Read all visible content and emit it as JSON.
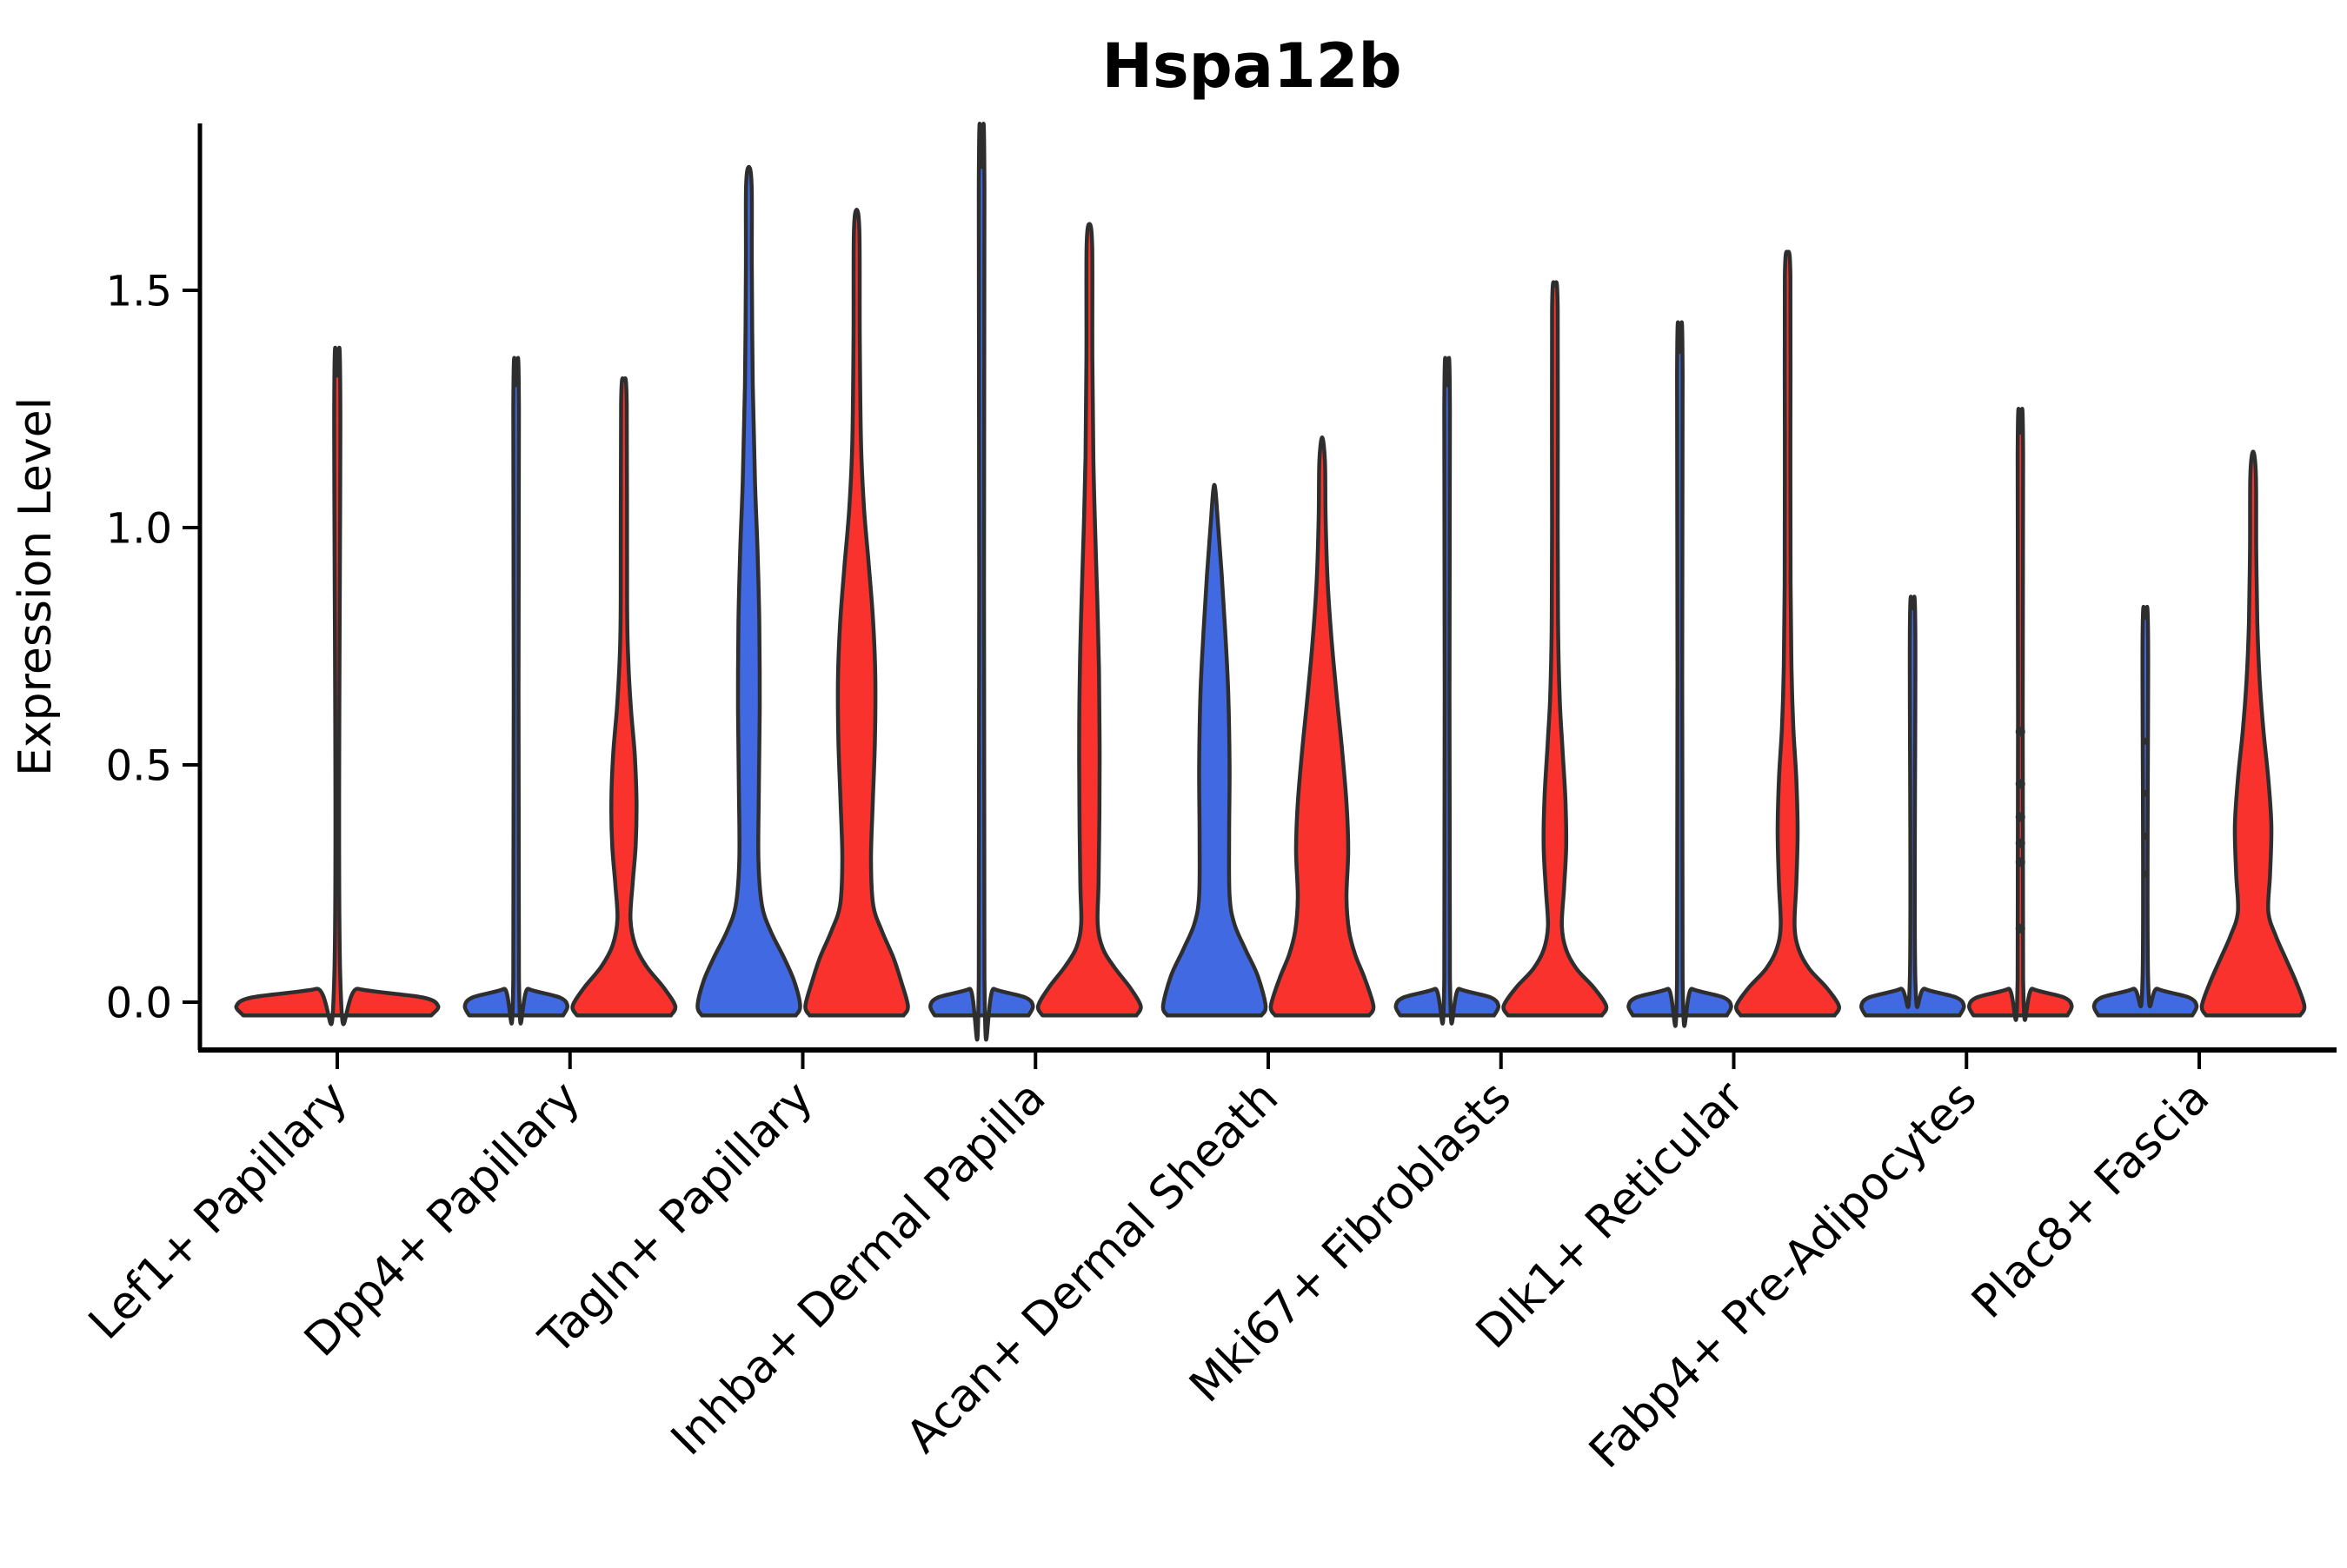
{
  "title": "Hspa12b",
  "axes": {
    "ylabel": "Expression Level",
    "ytick_labels": [
      "0.0",
      "0.5",
      "1.0",
      "1.5"
    ],
    "ytick_values": [
      0.0,
      0.5,
      1.0,
      1.5
    ]
  },
  "chart_data": {
    "type": "violin",
    "title": "Hspa12b",
    "ylabel": "Expression Level",
    "ylim": [
      -0.101,
      1.851
    ],
    "yticks": [
      0.0,
      0.5,
      1.0,
      1.5
    ],
    "grid": false,
    "legend": "none",
    "colors": {
      "blue": "#4169e1",
      "red": "#f9322d",
      "stroke": "#2e2e2e",
      "axis": "#000000"
    },
    "categories": [
      "Lef1+ Papillary",
      "Dpp4+ Papillary",
      "Tagln+ Papillary",
      "Inhba+ Dermal Papilla",
      "Acan+ Dermal Sheath",
      "Mki67+ Fibroblasts",
      "Dlk1+ Reticular",
      "Fabp4+ Pre-Adipocytes",
      "Plac8+ Fascia"
    ],
    "violins": [
      {
        "cat": 0,
        "side": "center",
        "color": "red",
        "tip": 1.32,
        "half_width": 118,
        "profile": [
          [
            -0.028,
            108
          ],
          [
            -0.008,
            116
          ],
          [
            0.01,
            98
          ],
          [
            0.028,
            24
          ],
          [
            0.05,
            3.5
          ],
          [
            1.27,
            3.5
          ],
          [
            1.32,
            0
          ]
        ],
        "dots": []
      },
      {
        "cat": 1,
        "side": "left",
        "color": "blue",
        "tip": 1.3,
        "half_width": 62,
        "profile": [
          [
            -0.028,
            54
          ],
          [
            -0.008,
            59
          ],
          [
            0.01,
            50
          ],
          [
            0.028,
            14
          ],
          [
            0.05,
            3.2
          ],
          [
            1.25,
            3.2
          ],
          [
            1.3,
            0
          ]
        ],
        "dots": []
      },
      {
        "cat": 1,
        "side": "right",
        "color": "red",
        "tip": 1.31,
        "half_width": 62,
        "profile": [
          [
            -0.028,
            54
          ],
          [
            -0.008,
            59
          ],
          [
            0.03,
            46
          ],
          [
            0.075,
            26
          ],
          [
            0.12,
            13
          ],
          [
            0.175,
            7.5
          ],
          [
            0.25,
            10
          ],
          [
            0.33,
            13.5
          ],
          [
            0.42,
            14.5
          ],
          [
            0.52,
            12.5
          ],
          [
            0.62,
            8
          ],
          [
            0.72,
            5
          ],
          [
            0.85,
            3.6
          ],
          [
            1.26,
            3.2
          ],
          [
            1.31,
            0
          ]
        ],
        "dots": []
      },
      {
        "cat": 2,
        "side": "left",
        "color": "blue",
        "tip": 1.76,
        "half_width": 62,
        "profile": [
          [
            -0.028,
            54
          ],
          [
            -0.008,
            59
          ],
          [
            0.045,
            52
          ],
          [
            0.095,
            40
          ],
          [
            0.15,
            25
          ],
          [
            0.205,
            15
          ],
          [
            0.3,
            11
          ],
          [
            0.45,
            11.5
          ],
          [
            0.62,
            12.5
          ],
          [
            0.8,
            12
          ],
          [
            0.95,
            10
          ],
          [
            1.1,
            7
          ],
          [
            1.3,
            4.5
          ],
          [
            1.55,
            3.4
          ],
          [
            1.72,
            3.2
          ],
          [
            1.76,
            0
          ]
        ],
        "dots": []
      },
      {
        "cat": 2,
        "side": "right",
        "color": "red",
        "tip": 1.67,
        "half_width": 62,
        "profile": [
          [
            -0.028,
            54
          ],
          [
            -0.008,
            59
          ],
          [
            0.045,
            51
          ],
          [
            0.095,
            42
          ],
          [
            0.15,
            29
          ],
          [
            0.205,
            19
          ],
          [
            0.3,
            16.5
          ],
          [
            0.42,
            18.5
          ],
          [
            0.55,
            21
          ],
          [
            0.68,
            21.5
          ],
          [
            0.8,
            19
          ],
          [
            0.92,
            14
          ],
          [
            1.04,
            8.5
          ],
          [
            1.18,
            5
          ],
          [
            1.4,
            3.6
          ],
          [
            1.62,
            3.2
          ],
          [
            1.67,
            0
          ]
        ],
        "dots": []
      },
      {
        "cat": 3,
        "side": "left",
        "color": "blue",
        "tip": 1.76,
        "half_width": 62,
        "profile": [
          [
            -0.028,
            54
          ],
          [
            -0.008,
            59
          ],
          [
            0.01,
            50
          ],
          [
            0.028,
            14
          ],
          [
            0.05,
            3.2
          ],
          [
            1.71,
            3.2
          ],
          [
            1.76,
            0
          ]
        ],
        "dots": []
      },
      {
        "cat": 3,
        "side": "right",
        "color": "red",
        "tip": 1.64,
        "half_width": 62,
        "profile": [
          [
            -0.028,
            54
          ],
          [
            -0.008,
            59
          ],
          [
            0.03,
            47
          ],
          [
            0.075,
            28
          ],
          [
            0.115,
            15
          ],
          [
            0.165,
            9.5
          ],
          [
            0.25,
            10.5
          ],
          [
            0.4,
            11.5
          ],
          [
            0.55,
            11.8
          ],
          [
            0.7,
            11
          ],
          [
            0.85,
            9
          ],
          [
            1.0,
            6.5
          ],
          [
            1.15,
            4.5
          ],
          [
            1.35,
            3.4
          ],
          [
            1.59,
            3.2
          ],
          [
            1.64,
            0
          ]
        ],
        "dots": []
      },
      {
        "cat": 4,
        "side": "left",
        "color": "blue",
        "tip": 1.09,
        "half_width": 62,
        "profile": [
          [
            -0.028,
            54
          ],
          [
            -0.008,
            59
          ],
          [
            0.055,
            50
          ],
          [
            0.11,
            36
          ],
          [
            0.165,
            23
          ],
          [
            0.225,
            17.5
          ],
          [
            0.35,
            17
          ],
          [
            0.5,
            17.5
          ],
          [
            0.65,
            16
          ],
          [
            0.78,
            12.5
          ],
          [
            0.9,
            8.5
          ],
          [
            1.0,
            4.5
          ],
          [
            1.09,
            0
          ]
        ],
        "dots": []
      },
      {
        "cat": 4,
        "side": "right",
        "color": "red",
        "tip": 1.19,
        "half_width": 62,
        "profile": [
          [
            -0.028,
            54
          ],
          [
            -0.008,
            59
          ],
          [
            0.05,
            49
          ],
          [
            0.1,
            38
          ],
          [
            0.15,
            31
          ],
          [
            0.22,
            28
          ],
          [
            0.32,
            30
          ],
          [
            0.42,
            28
          ],
          [
            0.53,
            23
          ],
          [
            0.64,
            17
          ],
          [
            0.76,
            11
          ],
          [
            0.88,
            6.5
          ],
          [
            1.02,
            4
          ],
          [
            1.14,
            3.2
          ],
          [
            1.19,
            0
          ]
        ],
        "dots": []
      },
      {
        "cat": 5,
        "side": "left",
        "color": "blue",
        "tip": 1.3,
        "half_width": 62,
        "profile": [
          [
            -0.028,
            54
          ],
          [
            -0.008,
            59
          ],
          [
            0.01,
            50
          ],
          [
            0.028,
            14
          ],
          [
            0.05,
            3.2
          ],
          [
            1.25,
            3.2
          ],
          [
            1.3,
            0
          ]
        ],
        "dots": []
      },
      {
        "cat": 5,
        "side": "right",
        "color": "red",
        "tip": 1.51,
        "half_width": 62,
        "profile": [
          [
            -0.028,
            54
          ],
          [
            -0.008,
            59
          ],
          [
            0.03,
            45
          ],
          [
            0.07,
            25
          ],
          [
            0.11,
            13
          ],
          [
            0.16,
            8
          ],
          [
            0.24,
            10.5
          ],
          [
            0.33,
            13
          ],
          [
            0.43,
            12
          ],
          [
            0.54,
            8.5
          ],
          [
            0.64,
            5.5
          ],
          [
            0.78,
            3.8
          ],
          [
            1.0,
            3.2
          ],
          [
            1.46,
            3.2
          ],
          [
            1.51,
            0
          ]
        ],
        "dots": []
      },
      {
        "cat": 6,
        "side": "left",
        "color": "blue",
        "tip": 1.37,
        "half_width": 62,
        "profile": [
          [
            -0.028,
            54
          ],
          [
            -0.008,
            59
          ],
          [
            0.01,
            50
          ],
          [
            0.028,
            14
          ],
          [
            0.05,
            3.2
          ],
          [
            1.32,
            3.2
          ],
          [
            1.37,
            0
          ]
        ],
        "dots": []
      },
      {
        "cat": 6,
        "side": "right",
        "color": "red",
        "tip": 1.58,
        "half_width": 62,
        "profile": [
          [
            -0.028,
            54
          ],
          [
            -0.008,
            59
          ],
          [
            0.03,
            45
          ],
          [
            0.07,
            25
          ],
          [
            0.11,
            13
          ],
          [
            0.16,
            8
          ],
          [
            0.25,
            10
          ],
          [
            0.36,
            11.5
          ],
          [
            0.47,
            10
          ],
          [
            0.58,
            6.5
          ],
          [
            0.7,
            4.5
          ],
          [
            0.88,
            3.4
          ],
          [
            1.2,
            3.2
          ],
          [
            1.53,
            3.2
          ],
          [
            1.58,
            0
          ]
        ],
        "dots": []
      },
      {
        "cat": 7,
        "side": "left",
        "color": "blue",
        "tip": 0.83,
        "half_width": 62,
        "profile": [
          [
            -0.028,
            54
          ],
          [
            -0.008,
            59
          ],
          [
            0.01,
            50
          ],
          [
            0.028,
            14
          ],
          [
            0.05,
            3.2
          ],
          [
            0.78,
            3.2
          ],
          [
            0.83,
            0
          ]
        ],
        "dots": []
      },
      {
        "cat": 7,
        "side": "right",
        "color": "red",
        "tip": 1.2,
        "half_width": 62,
        "profile": [
          [
            -0.028,
            54
          ],
          [
            -0.008,
            59
          ],
          [
            0.01,
            50
          ],
          [
            0.028,
            14
          ],
          [
            0.05,
            3.2
          ],
          [
            1.15,
            3.2
          ],
          [
            1.2,
            0
          ]
        ],
        "dots": [
          0.57,
          0.46,
          0.39,
          0.335,
          0.295,
          0.155
        ],
        "dot_radius": 5.5
      },
      {
        "cat": 8,
        "side": "left",
        "color": "blue",
        "tip": 0.81,
        "half_width": 62,
        "profile": [
          [
            -0.028,
            54
          ],
          [
            -0.008,
            59
          ],
          [
            0.01,
            50
          ],
          [
            0.028,
            14
          ],
          [
            0.05,
            3.2
          ],
          [
            0.76,
            3.2
          ],
          [
            0.81,
            0
          ]
        ],
        "dots": [
          0.55,
          0.44,
          0.35,
          0.27
        ],
        "dot_radius": 4
      },
      {
        "cat": 8,
        "side": "right",
        "color": "red",
        "tip": 1.16,
        "half_width": 62,
        "profile": [
          [
            -0.028,
            54
          ],
          [
            -0.008,
            59
          ],
          [
            0.04,
            50
          ],
          [
            0.09,
            38
          ],
          [
            0.14,
            26
          ],
          [
            0.19,
            17.5
          ],
          [
            0.27,
            19.5
          ],
          [
            0.37,
            21
          ],
          [
            0.47,
            17.5
          ],
          [
            0.57,
            12
          ],
          [
            0.68,
            7.5
          ],
          [
            0.8,
            4.8
          ],
          [
            0.95,
            3.6
          ],
          [
            1.11,
            3.2
          ],
          [
            1.16,
            0
          ]
        ],
        "dots": []
      }
    ]
  }
}
